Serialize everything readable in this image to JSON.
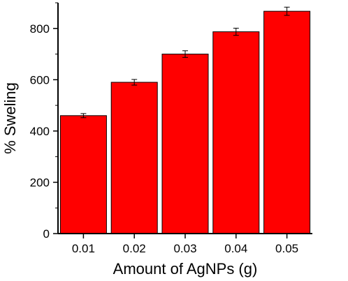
{
  "chart_data": {
    "type": "bar",
    "title": "",
    "xlabel": "Amount of AgNPs (g)",
    "ylabel": "% Sweling",
    "categories": [
      "0.01",
      "0.02",
      "0.03",
      "0.04",
      "0.05"
    ],
    "values": [
      460,
      590,
      700,
      787,
      867
    ],
    "errors": [
      8,
      11,
      13,
      14,
      16
    ],
    "ylim": [
      0,
      900
    ],
    "yticks": [
      0,
      200,
      400,
      600,
      800
    ],
    "bar_color": "#ff0000",
    "grid": false,
    "legend": "none"
  }
}
